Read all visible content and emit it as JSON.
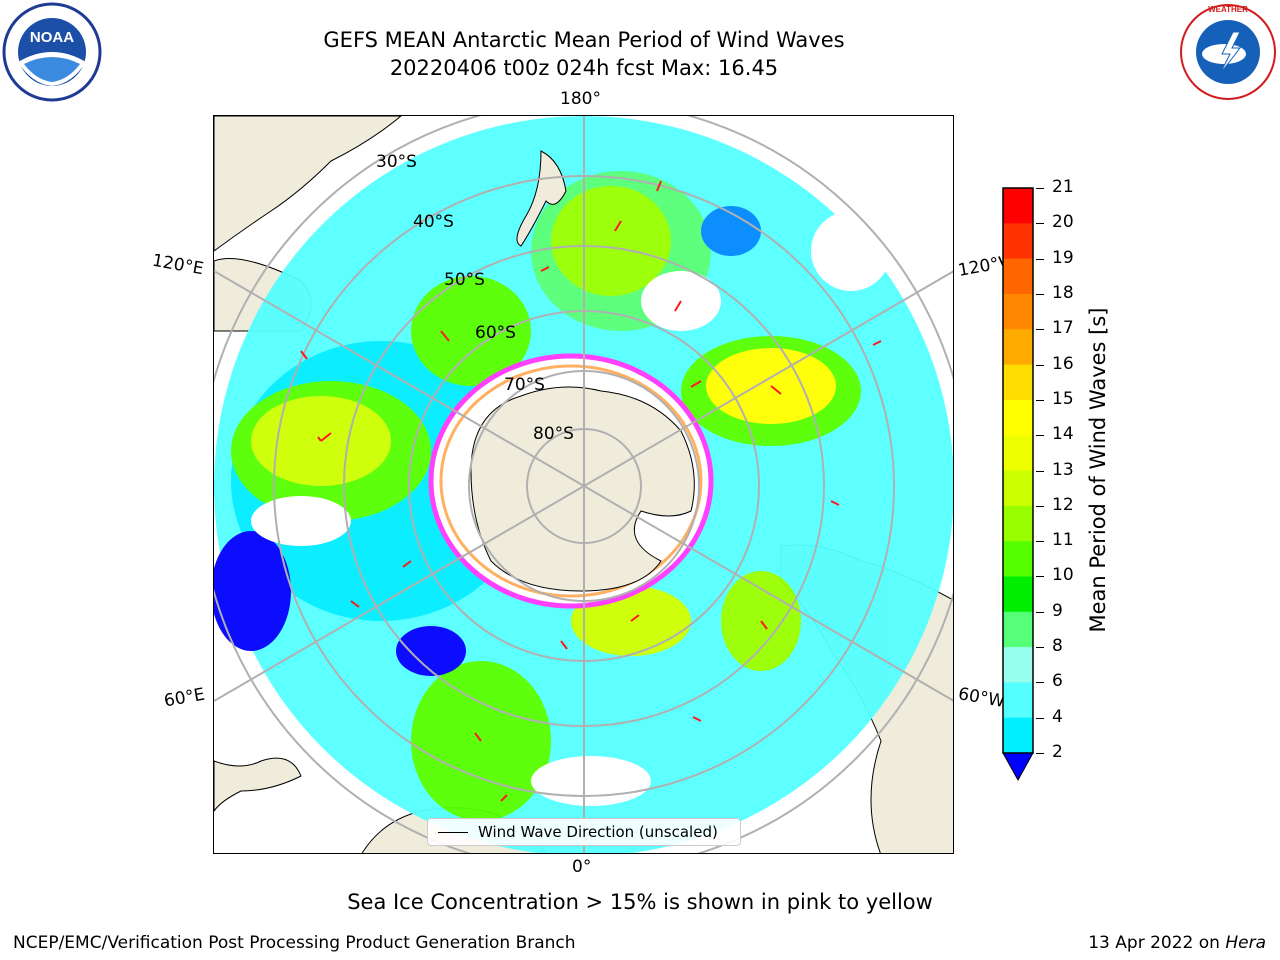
{
  "title": {
    "line1": "GEFS MEAN Antarctic Mean Period of Wind Waves",
    "line2": "20220406 t00z 024h fcst   Max: 16.45"
  },
  "logos": {
    "left": "NOAA",
    "right": "National Weather Service"
  },
  "map": {
    "projection": "south-polar-stereographic",
    "longitude_labels": {
      "top": "180°",
      "bottom": "0°",
      "left_upper": "120°E",
      "left_lower": "60°E",
      "right_upper": "120°W",
      "right_lower": "60°W"
    },
    "latitude_labels": [
      "30°S",
      "40°S",
      "50°S",
      "60°S",
      "70°S",
      "80°S"
    ],
    "colors": {
      "land": "#efecdc",
      "ocean_background": "#ffffff",
      "grid": "#b0b0b0",
      "arrow": "#ff1a1a",
      "sea_ice_edge": "#ff40ff",
      "sea_ice_inner": "#ffb060"
    }
  },
  "colorbar": {
    "label": "Mean Period of Wind Waves [s]",
    "ticks": [
      "21",
      "20",
      "19",
      "18",
      "17",
      "16",
      "15",
      "14",
      "13",
      "12",
      "11",
      "10",
      "9",
      "8",
      "6",
      "4",
      "2"
    ],
    "colors": [
      "#ff0000",
      "#ff3300",
      "#ff6600",
      "#ff8800",
      "#ffaa00",
      "#ffdd00",
      "#ffff00",
      "#eeff00",
      "#ccff00",
      "#99ff00",
      "#55ff00",
      "#00ee00",
      "#55ff77",
      "#99ffee",
      "#55ffff",
      "#00eeff",
      "#0088ff",
      "#0000ff"
    ]
  },
  "legend": {
    "label": "Wind Wave Direction (unscaled)"
  },
  "caption": "Sea Ice Concentration > 15% is shown in pink to yellow",
  "footer": {
    "left": "NCEP/EMC/Verification Post Processing Product Generation Branch",
    "right_date": "13 Apr 2022 on",
    "right_host": "Hera"
  }
}
